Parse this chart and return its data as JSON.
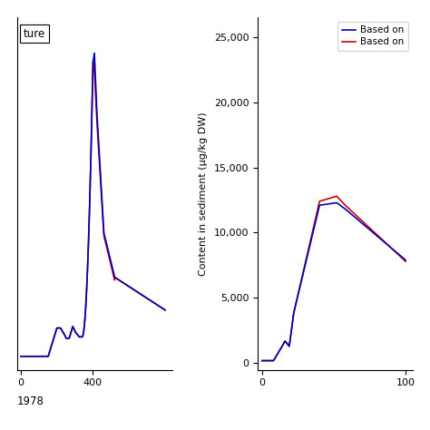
{
  "ylabel_right": "Content in sediment (μg/kg DW)",
  "legend_labels": [
    "Based on",
    "Based on"
  ],
  "legend_colors": [
    "#0000bb",
    "#cc0000"
  ],
  "left_box_label": "ture",
  "right_yticks": [
    0,
    5000,
    10000,
    15000,
    20000,
    25000
  ],
  "background_color": "#ffffff",
  "line_width": 1.2,
  "left_xlim": [
    295,
    510
  ],
  "left_ylim": [
    -0.03,
    1.15
  ],
  "right_xlim": [
    -3,
    105
  ],
  "right_ylim": [
    -500,
    26500
  ]
}
